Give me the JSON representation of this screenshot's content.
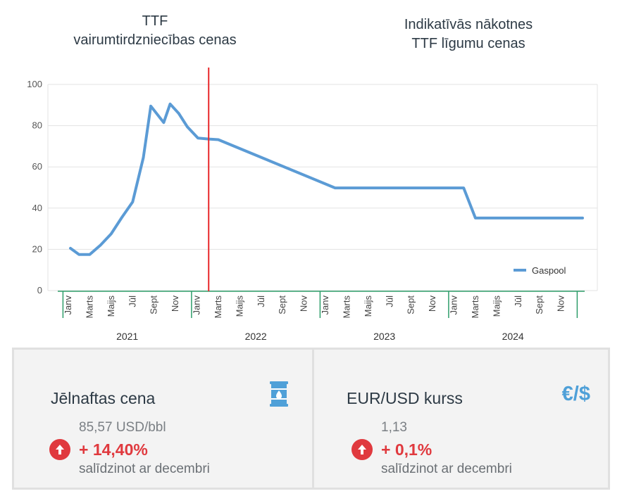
{
  "headings": {
    "left": [
      "TTF",
      "vairumtirdzniecības cenas"
    ],
    "right": [
      "Indikatīvās nākotnes",
      "TTF līgumu cenas"
    ]
  },
  "colors": {
    "line": "#5b9bd5",
    "divider": "#e8272a",
    "axis_band": "#2e9e6a",
    "accent_up": "#e0393e",
    "icon_blue": "#4fa0d8"
  },
  "chart_data": {
    "type": "line",
    "ylim": [
      0,
      100
    ],
    "yticks": [
      0,
      20,
      40,
      60,
      80,
      100
    ],
    "xlim": [
      0,
      48
    ],
    "month_labels": [
      "Janv",
      "Marts",
      "Maijs",
      "Jūl",
      "Sept",
      "Nov"
    ],
    "month_positions": [
      0,
      2,
      4,
      6,
      8,
      10
    ],
    "years": [
      "2021",
      "2022",
      "2023",
      "2024"
    ],
    "split_at": 13.1,
    "legend": "Gaspool",
    "legend_position": "bottom-right",
    "series": [
      {
        "name": "Gaspool",
        "x": [
          0.2,
          1,
          2,
          3,
          4,
          5,
          6,
          7,
          7.7,
          8.9,
          9.5,
          10.3,
          11.1,
          12.1,
          13.1,
          14,
          24.9,
          26,
          36.9,
          38,
          48
        ],
        "values": [
          20.5,
          17.5,
          17.5,
          22,
          27.5,
          35.5,
          43,
          64.5,
          89.5,
          81.5,
          90.5,
          86,
          79.5,
          74,
          73.5,
          73.2,
          49.8,
          49.8,
          49.8,
          35.2,
          35.2
        ]
      }
    ]
  },
  "cards": {
    "oil": {
      "title": "Jēlnaftas cena",
      "value": "85,57 USD/bbl",
      "change": "+ 14,40%",
      "sub": "salīdzinot ar decembri",
      "icon": "oil-barrel-icon"
    },
    "fx": {
      "title": "EUR/USD kurss",
      "value": "1,13",
      "change": "+ 0,1%",
      "sub": "salīdzinot ar decembri",
      "icon_text": "€/$"
    }
  }
}
